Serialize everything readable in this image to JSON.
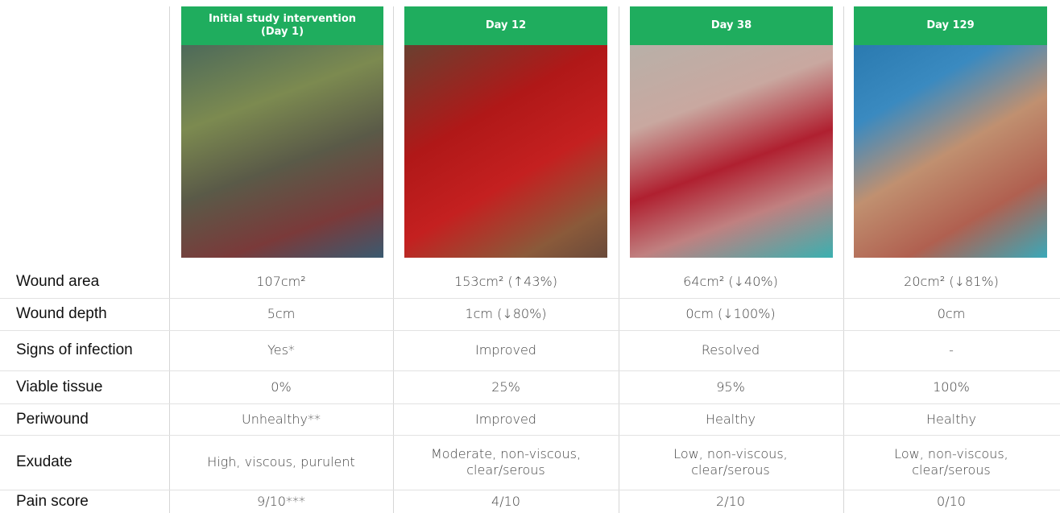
{
  "columns": [
    {
      "header": "Initial study intervention (Day 1)"
    },
    {
      "header": "Day 12"
    },
    {
      "header": "Day 38"
    },
    {
      "header": "Day 129"
    }
  ],
  "rows": [
    {
      "label": "Wound area",
      "values": [
        "107cm²",
        "153cm² (↑43%)",
        "64cm² (↓40%)",
        "20cm² (↓81%)"
      ]
    },
    {
      "label": "Wound depth",
      "values": [
        "5cm",
        "1cm (↓80%)",
        "0cm (↓100%)",
        "0cm"
      ]
    },
    {
      "label": "Signs of infection",
      "values": [
        "Yes*",
        "Improved",
        "Resolved",
        "-"
      ]
    },
    {
      "label": "Viable tissue",
      "values": [
        "0%",
        "25%",
        "95%",
        "100%"
      ]
    },
    {
      "label": "Periwound",
      "values": [
        "Unhealthy**",
        "Improved",
        "Healthy",
        "Healthy"
      ]
    },
    {
      "label": "Exudate",
      "values": [
        "High, viscous, purulent",
        "Moderate, non-viscous, clear/serous",
        "Low, non-viscous, clear/serous",
        "Low, non-viscous, clear/serous"
      ]
    },
    {
      "label": "Pain score",
      "values": [
        "9/10***",
        "4/10",
        "2/10",
        "0/10"
      ]
    }
  ]
}
